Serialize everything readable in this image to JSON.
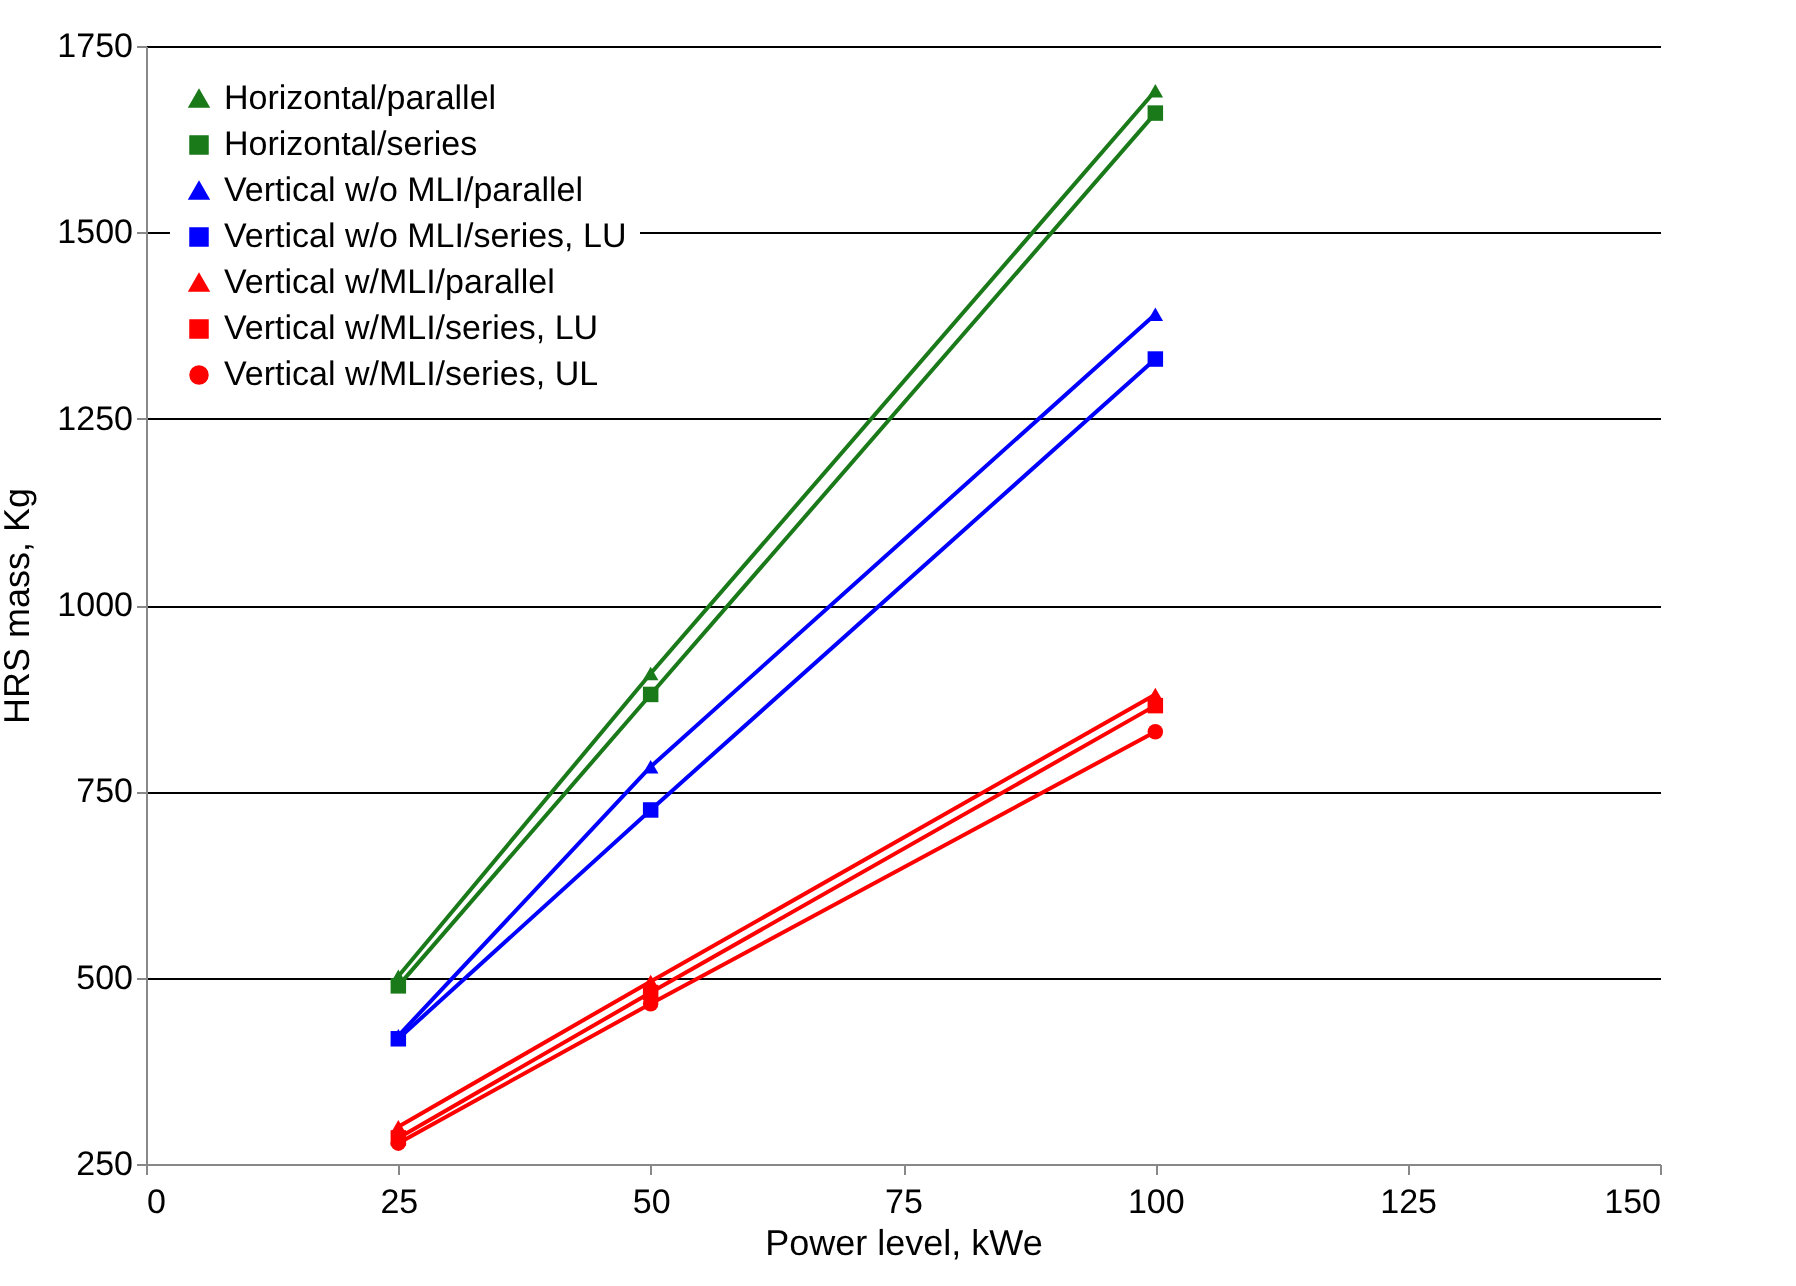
{
  "chart_data": {
    "type": "line",
    "xlabel": "Power level, kWe",
    "ylabel": "HRS mass, Kg",
    "x": [
      25,
      50,
      100
    ],
    "xlim": [
      0,
      150
    ],
    "xticks": [
      0,
      25,
      50,
      75,
      100,
      125,
      150
    ],
    "ylim": [
      250,
      1750
    ],
    "yticks": [
      250,
      500,
      750,
      1000,
      1250,
      1500,
      1750
    ],
    "grid": "y",
    "legend": "top left",
    "series": [
      {
        "name": "Horizontal/parallel",
        "color": "#1a7a1a",
        "marker": "triangle",
        "values": [
          502,
          908,
          1690
        ]
      },
      {
        "name": "Horizontal/series",
        "color": "#1a7a1a",
        "marker": "square",
        "values": [
          489,
          880,
          1660
        ]
      },
      {
        "name": "Vertical w/o MLI/parallel",
        "color": "#0000ff",
        "marker": "triangle",
        "values": [
          422,
          783,
          1390
        ]
      },
      {
        "name": "Vertical w/o MLI/series, LU",
        "color": "#0000ff",
        "marker": "square",
        "values": [
          418,
          725,
          1330
        ]
      },
      {
        "name": "Vertical w/MLI/parallel",
        "color": "#ff0000",
        "marker": "triangle",
        "values": [
          300,
          495,
          880
        ]
      },
      {
        "name": "Vertical w/MLI/series, LU",
        "color": "#ff0000",
        "marker": "square",
        "values": [
          285,
          480,
          865
        ]
      },
      {
        "name": "Vertical w/MLI/series, UL",
        "color": "#ff0000",
        "marker": "circle",
        "values": [
          278,
          465,
          830
        ]
      }
    ]
  }
}
